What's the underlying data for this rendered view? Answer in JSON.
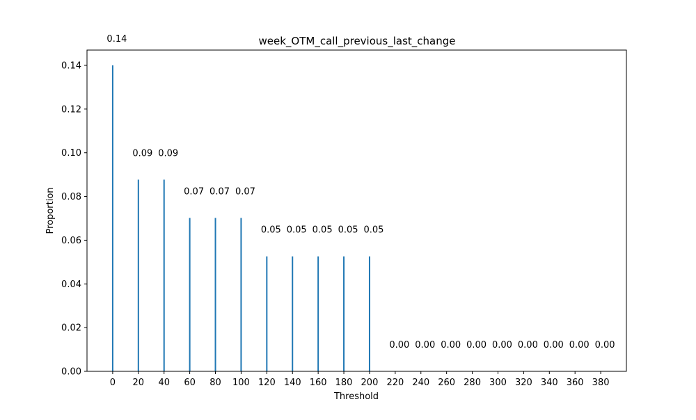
{
  "chart_data": {
    "type": "bar",
    "title": "week_OTM_call_previous_last_change",
    "xlabel": "Threshold",
    "ylabel": "Proportion",
    "categories": [
      0,
      20,
      40,
      60,
      80,
      100,
      120,
      140,
      160,
      180,
      200,
      220,
      240,
      260,
      280,
      300,
      320,
      340,
      360,
      380
    ],
    "values": [
      0.14,
      0.0877,
      0.0877,
      0.0702,
      0.0702,
      0.0702,
      0.0526,
      0.0526,
      0.0526,
      0.0526,
      0.0526,
      0,
      0,
      0,
      0,
      0,
      0,
      0,
      0,
      0
    ],
    "data_labels": [
      "0.14",
      "0.09",
      "0.09",
      "0.07",
      "0.07",
      "0.07",
      "0.05",
      "0.05",
      "0.05",
      "0.05",
      "0.05",
      "0.00",
      "0.00",
      "0.00",
      "0.00",
      "0.00",
      "0.00",
      "0.00",
      "0.00",
      "0.00"
    ],
    "xticks": [
      "0",
      "20",
      "40",
      "60",
      "80",
      "100",
      "120",
      "140",
      "160",
      "180",
      "200",
      "220",
      "240",
      "260",
      "280",
      "300",
      "320",
      "340",
      "360",
      "380"
    ],
    "yticks": [
      "0.00",
      "0.02",
      "0.04",
      "0.06",
      "0.08",
      "0.10",
      "0.12",
      "0.14"
    ],
    "ytick_values": [
      0,
      0.02,
      0.04,
      0.06,
      0.08,
      0.1,
      0.12,
      0.14
    ],
    "xlim": [
      -20,
      400
    ],
    "ylim": [
      0,
      0.147
    ],
    "grid": false,
    "legend": "none",
    "bar_color": "#1f77b4"
  }
}
